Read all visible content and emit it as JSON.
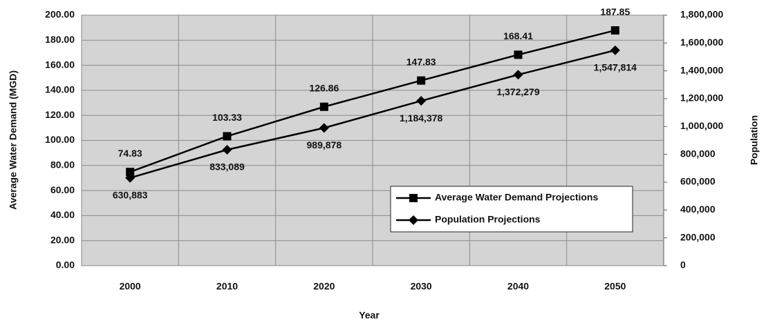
{
  "chart_data": {
    "type": "line",
    "xlabel": "Year",
    "ylabel": "Average Water Demand (MGD)",
    "y2label": "Population",
    "categories": [
      "2000",
      "2010",
      "2020",
      "2030",
      "2040",
      "2050"
    ],
    "series": [
      {
        "name": "Average Water Demand Projections",
        "color": "#000000",
        "marker": "square",
        "values": [
          74.83,
          103.33,
          126.86,
          147.83,
          168.41,
          187.85
        ]
      },
      {
        "name": "Population Projections",
        "color": "#000000",
        "marker": "diamond",
        "axis": "y2",
        "values": [
          630883,
          833089,
          989878,
          1184378,
          1372279,
          1547814
        ],
        "value_labels": [
          "630,883",
          "833,089",
          "989,878",
          "1,184,378",
          "1,372,279",
          "1,547,814"
        ]
      }
    ],
    "ylim": [
      0,
      200
    ],
    "yticks": [
      {
        "value": 0,
        "label": "0.00"
      },
      {
        "value": 20,
        "label": "20.00"
      },
      {
        "value": 40,
        "label": "40.00"
      },
      {
        "value": 60,
        "label": "60.00"
      },
      {
        "value": 80,
        "label": "80.00"
      },
      {
        "value": 100,
        "label": "100.00"
      },
      {
        "value": 120,
        "label": "120.00"
      },
      {
        "value": 140,
        "label": "140.00"
      },
      {
        "value": 160,
        "label": "160.00"
      },
      {
        "value": 180,
        "label": "180.00"
      },
      {
        "value": 200,
        "label": "200.00"
      }
    ],
    "y2lim": [
      0,
      1800000
    ],
    "y2ticks": [
      0,
      {
        "value": 200000,
        "label": "200,000"
      },
      {
        "value": 400000,
        "label": "400,000"
      },
      {
        "value": 600000,
        "label": "600,000"
      },
      {
        "value": 800000,
        "label": "800,000"
      },
      {
        "value": 1000000,
        "label": "1,000,000"
      },
      {
        "value": 1200000,
        "label": "1,200,000"
      },
      {
        "value": 1400000,
        "label": "1,400,000"
      },
      {
        "value": 1600000,
        "label": "1,600,000"
      },
      {
        "value": 1800000,
        "label": "1,800,000"
      }
    ],
    "grid": true,
    "legend": "lower right"
  }
}
